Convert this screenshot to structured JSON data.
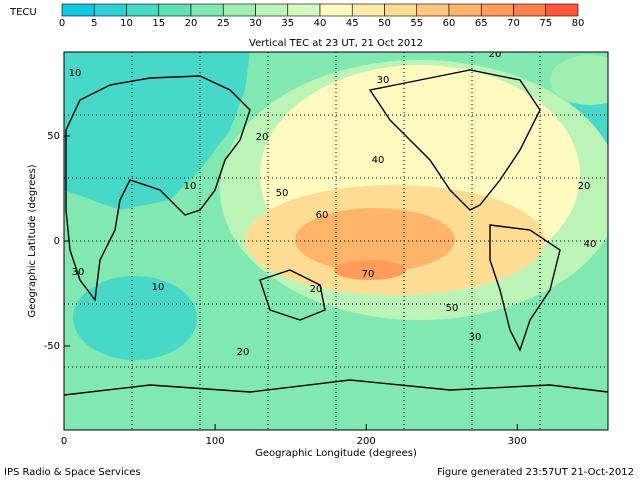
{
  "colorbar": {
    "unit": "TECU",
    "ticks": [
      0,
      5,
      10,
      15,
      20,
      25,
      30,
      35,
      40,
      45,
      50,
      55,
      60,
      65,
      70,
      75,
      80
    ],
    "colors": [
      "#10c8e0",
      "#30d0d8",
      "#48d8c8",
      "#60e0b8",
      "#80e8b0",
      "#a0eeb0",
      "#bcf4b8",
      "#d4f8c0",
      "#fffac0",
      "#ffeaa8",
      "#ffdc94",
      "#ffc880",
      "#ffb46c",
      "#ff9c5c",
      "#ff804c",
      "#ff5838"
    ]
  },
  "map": {
    "title": "Vertical TEC at 23 UT, 21 Oct 2012",
    "x_label": "Geographic Longitude (degrees)",
    "y_label": "Geographic Latitude (degrees)",
    "xlim": [
      0,
      360
    ],
    "ylim": [
      -90,
      90
    ],
    "xticks": [
      0,
      100,
      200,
      300
    ],
    "yticks": [
      -50,
      0,
      50
    ],
    "contour_labels": [
      10,
      20,
      30,
      40,
      50,
      60,
      70,
      20,
      20,
      40,
      10,
      10,
      30,
      20,
      30,
      50,
      20
    ]
  },
  "footer": {
    "left": "IPS Radio & Space Services",
    "right": "Figure generated 23:57UT 21-Oct-2012"
  }
}
